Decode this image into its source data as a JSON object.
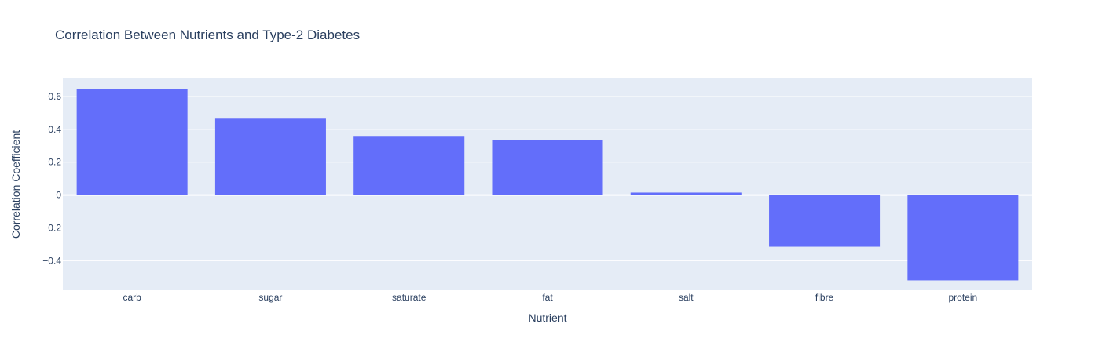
{
  "chart_data": {
    "type": "bar",
    "title": "Correlation Between Nutrients and Type-2 Diabetes",
    "xlabel": "Nutrient",
    "ylabel": "Correlation Coefficient",
    "categories": [
      "carb",
      "sugar",
      "saturate",
      "fat",
      "salt",
      "fibre",
      "protein"
    ],
    "values": [
      0.645,
      0.465,
      0.36,
      0.335,
      0.015,
      -0.315,
      -0.52
    ],
    "ylim": [
      -0.58,
      0.71
    ],
    "yticks": [
      -0.4,
      -0.2,
      0,
      0.2,
      0.4,
      0.6
    ],
    "ytick_labels": [
      "−0.4",
      "−0.2",
      "0",
      "0.2",
      "0.4",
      "0.6"
    ],
    "grid": true,
    "colors": {
      "bar": "#636efa",
      "plot_bg": "#e5ecf6",
      "grid": "#ffffff",
      "text": "#2a3f5f"
    }
  }
}
